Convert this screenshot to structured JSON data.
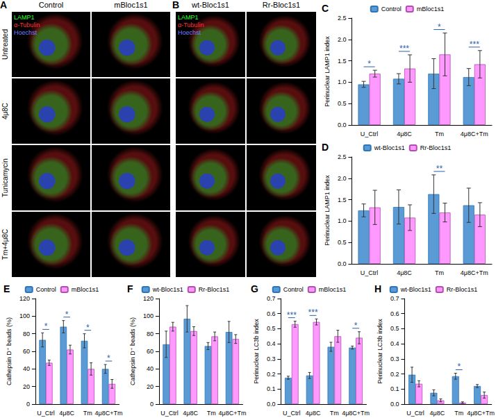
{
  "images": [
    {
      "panel": "A",
      "columns": [
        "Control",
        "mBloc1s1"
      ],
      "rows": [
        "Untreated",
        "4μ8C",
        "Tunicamycin",
        "Tm+4μ8C"
      ],
      "channels": [
        {
          "name": "LAMP1",
          "color": "#33ff33"
        },
        {
          "name": "α-Tubulin",
          "color": "#ff3333"
        },
        {
          "name": "Hoechst",
          "color": "#6f7bff"
        }
      ]
    },
    {
      "panel": "B",
      "columns": [
        "wt-Bloc1s1",
        "Rr-Bloc1s1"
      ],
      "rows": [
        null,
        null,
        null,
        null
      ],
      "channels": [
        {
          "name": "LAMP1",
          "color": "#33ff33"
        },
        {
          "name": "α-Tubulin",
          "color": "#ff3333"
        },
        {
          "name": "Hoechst",
          "color": "#6f7bff"
        }
      ]
    }
  ],
  "chart_data": [
    {
      "panel": "C",
      "type": "bar",
      "categories": [
        "U_Ctrl",
        "4μ8C",
        "Tm",
        "4μ8C+Tm"
      ],
      "ylabel": "Perinuclear LAMP1 index",
      "ylim": [
        0,
        2.5
      ],
      "yticks": [
        {
          "value": 0,
          "label": "0.0"
        },
        {
          "value": 0.5,
          "label": "0.5"
        },
        {
          "value": 1,
          "label": "1.0"
        },
        {
          "value": 1.5,
          "label": "1.5"
        },
        {
          "value": 2,
          "label": "2.0"
        },
        {
          "value": 2.5,
          "label": "2.5"
        }
      ],
      "grid": false,
      "legend": "top",
      "series": [
        {
          "name": "Control",
          "color": "#5b9bd5",
          "values": [
            0.95,
            1.08,
            1.2,
            1.12
          ],
          "errors": [
            0.07,
            0.12,
            0.35,
            0.2
          ]
        },
        {
          "name": "mBloc1s1",
          "color": "#ff99ff",
          "values": [
            1.2,
            1.32,
            1.65,
            1.42
          ],
          "errors": [
            0.08,
            0.32,
            0.5,
            0.32
          ]
        }
      ],
      "significance": [
        "*",
        "***",
        "*",
        "***"
      ]
    },
    {
      "panel": "D",
      "type": "bar",
      "categories": [
        "U_Ctrl",
        "4μ8C",
        "Tm",
        "4μ8C+Tm"
      ],
      "ylabel": "Perinuclear LAMP1 index",
      "ylim": [
        0,
        2.5
      ],
      "yticks": [
        {
          "value": 0,
          "label": "0.0"
        },
        {
          "value": 0.5,
          "label": "0.5"
        },
        {
          "value": 1,
          "label": "1.0"
        },
        {
          "value": 1.5,
          "label": "1.5"
        },
        {
          "value": 2,
          "label": "2.0"
        },
        {
          "value": 2.5,
          "label": "2.5"
        }
      ],
      "grid": false,
      "legend": "top",
      "series": [
        {
          "name": "wt-Bloc1s1",
          "color": "#5b9bd5",
          "values": [
            1.25,
            1.33,
            1.63,
            1.37
          ],
          "errors": [
            0.15,
            0.4,
            0.45,
            0.4
          ]
        },
        {
          "name": "Rr-Bloc1s1",
          "color": "#ff99ff",
          "values": [
            1.32,
            1.08,
            1.2,
            1.15
          ],
          "errors": [
            0.4,
            0.3,
            0.22,
            0.28
          ]
        }
      ],
      "significance": [
        null,
        null,
        "**",
        null
      ]
    },
    {
      "panel": "E",
      "type": "bar",
      "categories": [
        "U_Ctrl",
        "4μ8C",
        "Tm",
        "4μ8C+Tm"
      ],
      "ylabel": "Cathepsin D⁺ beads (%)",
      "ylim": [
        0,
        120
      ],
      "yticks": [
        0,
        20,
        40,
        60,
        80,
        100,
        120
      ],
      "grid": false,
      "legend": "top",
      "series": [
        {
          "name": "Control",
          "color": "#5b9bd5",
          "values": [
            73,
            88,
            72,
            40
          ],
          "errors": [
            8,
            7,
            8,
            5
          ]
        },
        {
          "name": "mBloc1s1",
          "color": "#ff99ff",
          "values": [
            47,
            62,
            40,
            23
          ],
          "errors": [
            3,
            5,
            7,
            5
          ]
        }
      ],
      "significance": [
        "*",
        "*",
        "*",
        "*"
      ]
    },
    {
      "panel": "F",
      "type": "bar",
      "categories": [
        "U_Ctrl",
        "4μ8C",
        "Tm",
        "4μ8C+Tm"
      ],
      "ylabel": "Cathepsin D⁺ beads (%)",
      "ylim": [
        0,
        120
      ],
      "yticks": [
        0,
        20,
        40,
        60,
        80,
        100,
        120
      ],
      "grid": false,
      "legend": "top",
      "series": [
        {
          "name": "wt-Bloc1s1",
          "color": "#5b9bd5",
          "values": [
            68,
            97,
            66,
            82
          ],
          "errors": [
            15,
            15,
            4,
            12
          ]
        },
        {
          "name": "Rr-Bloc1s1",
          "color": "#ff99ff",
          "values": [
            88,
            83,
            77,
            74
          ],
          "errors": [
            5,
            5,
            5,
            5
          ]
        }
      ],
      "significance": [
        null,
        null,
        null,
        null
      ]
    },
    {
      "panel": "G",
      "type": "bar",
      "categories": [
        "U_Ctrl",
        "4μ8C",
        "Tm",
        "4μ8C+Tm"
      ],
      "ylabel": "Perinuclear LC3b index",
      "ylim": [
        0,
        0.7
      ],
      "yticks": [
        {
          "value": 0,
          "label": "0.0"
        },
        0.1,
        0.2,
        0.3,
        0.4,
        0.5,
        0.6,
        0.7
      ],
      "grid": false,
      "legend": "top",
      "series": [
        {
          "name": "Control",
          "color": "#5b9bd5",
          "values": [
            0.175,
            0.19,
            0.38,
            0.375
          ],
          "errors": [
            0.01,
            0.02,
            0.03,
            0.01
          ]
        },
        {
          "name": "mBloc1s1",
          "color": "#ff99ff",
          "values": [
            0.53,
            0.545,
            0.45,
            0.44
          ],
          "errors": [
            0.02,
            0.02,
            0.04,
            0.04
          ]
        }
      ],
      "significance": [
        "***",
        "***",
        null,
        "*"
      ]
    },
    {
      "panel": "H",
      "type": "bar",
      "categories": [
        "U_Ctrl",
        "4μ8C",
        "Tm",
        "4μ8C+Tm"
      ],
      "ylabel": "Perinuclear LC3b index",
      "ylim": [
        0,
        0.7
      ],
      "yticks": [
        {
          "value": 0,
          "label": "0.0"
        },
        0.1,
        0.2,
        0.3,
        0.4,
        0.5,
        0.6,
        0.7
      ],
      "grid": false,
      "legend": "top",
      "series": [
        {
          "name": "wt-Bloc1s1",
          "color": "#5b9bd5",
          "values": [
            0.195,
            0.075,
            0.185,
            0.12
          ],
          "errors": [
            0.05,
            0.02,
            0.02,
            0.01
          ]
        },
        {
          "name": "Rr-Bloc1s1",
          "color": "#ff99ff",
          "values": [
            0.135,
            0.025,
            0.01,
            0.06
          ],
          "errors": [
            0.02,
            0.01,
            0.005,
            0.02
          ]
        }
      ],
      "significance": [
        null,
        null,
        "*",
        null
      ]
    }
  ]
}
